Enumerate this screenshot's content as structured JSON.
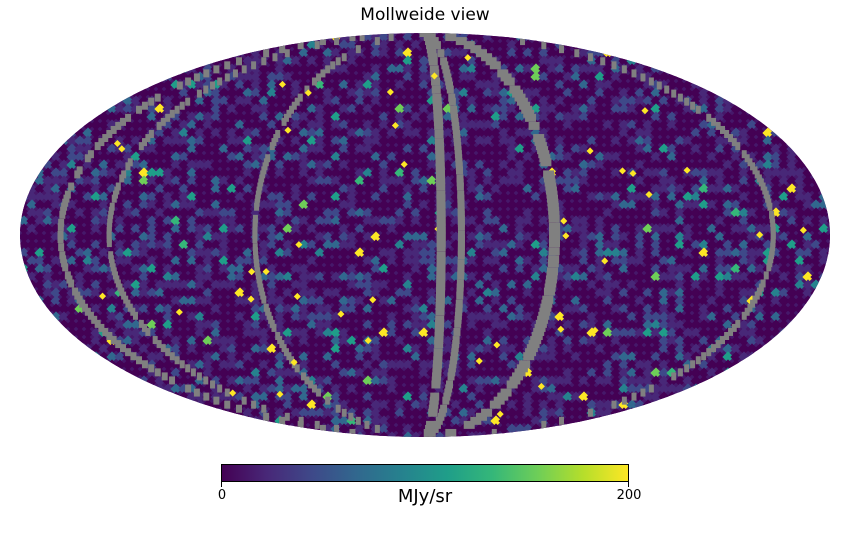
{
  "title": "Mollweide view",
  "colorbar": {
    "min_label": "0",
    "max_label": "200",
    "unit": "MJy/sr",
    "colormap": [
      "#440154",
      "#482878",
      "#3e4989",
      "#31688e",
      "#26828e",
      "#1f9e89",
      "#35b779",
      "#6ece58",
      "#b5de2b",
      "#fde725"
    ]
  },
  "chart_data": {
    "type": "heatmap",
    "projection": "mollweide",
    "title": "Mollweide view",
    "value_range": [
      0,
      200
    ],
    "unit": "MJy/sr",
    "colormap": "viridis",
    "masked_color": "#808080",
    "background_level": "mostly dark purple (low values)"
  }
}
